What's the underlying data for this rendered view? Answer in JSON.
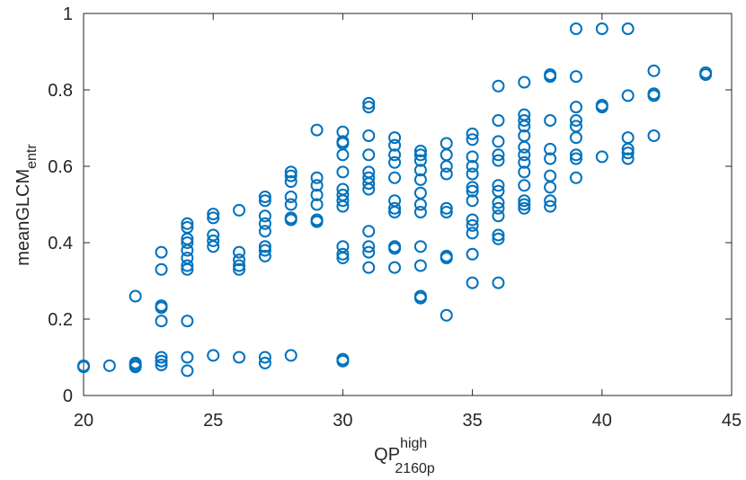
{
  "chart_data": {
    "type": "scatter",
    "xlabel": {
      "text": "QP",
      "sup": "high",
      "sub": "2160p"
    },
    "ylabel": {
      "text": "meanGLCM",
      "sub": "entr"
    },
    "color": "#0072bd",
    "xlim": [
      20,
      45
    ],
    "xticks": [
      20,
      25,
      30,
      35,
      40,
      45
    ],
    "ylim": [
      0,
      1
    ],
    "yticks": [
      0,
      0.2,
      0.4,
      0.6,
      0.8,
      1
    ],
    "x": [
      20,
      20,
      21,
      22,
      22,
      22,
      22,
      23,
      23,
      23,
      23,
      23,
      23,
      23,
      23,
      24,
      24,
      24,
      24,
      24,
      24,
      24,
      24,
      24,
      24,
      24,
      25,
      25,
      25,
      25,
      25,
      25,
      26,
      26,
      26,
      26,
      26,
      26,
      27,
      27,
      27,
      27,
      27,
      27,
      27,
      27,
      27,
      27,
      28,
      28,
      28,
      28,
      28,
      28,
      28,
      28,
      29,
      29,
      29,
      29,
      29,
      29,
      29,
      30,
      30,
      30,
      30,
      30,
      30,
      30,
      30,
      30,
      30,
      30,
      30,
      30,
      30,
      31,
      31,
      31,
      31,
      31,
      31,
      31,
      31,
      31,
      31,
      31,
      31,
      32,
      32,
      32,
      32,
      32,
      32,
      32,
      32,
      32,
      32,
      32,
      33,
      33,
      33,
      33,
      33,
      33,
      33,
      33,
      33,
      33,
      33,
      33,
      34,
      34,
      34,
      34,
      34,
      34,
      34,
      34,
      34,
      35,
      35,
      35,
      35,
      35,
      35,
      35,
      35,
      35,
      35,
      35,
      35,
      35,
      36,
      36,
      36,
      36,
      36,
      36,
      36,
      36,
      36,
      36,
      36,
      36,
      36,
      37,
      37,
      37,
      37,
      37,
      37,
      37,
      37,
      37,
      37,
      37,
      37,
      37,
      38,
      38,
      38,
      38,
      38,
      38,
      38,
      38,
      38,
      39,
      39,
      39,
      39,
      39,
      39,
      39,
      39,
      39,
      40,
      40,
      40,
      40,
      41,
      41,
      41,
      41,
      41,
      41,
      42,
      42,
      42,
      42,
      44,
      44
    ],
    "y": [
      0.078,
      0.075,
      0.078,
      0.26,
      0.085,
      0.075,
      0.08,
      0.375,
      0.33,
      0.235,
      0.23,
      0.195,
      0.1,
      0.09,
      0.08,
      0.45,
      0.44,
      0.41,
      0.4,
      0.38,
      0.36,
      0.34,
      0.33,
      0.195,
      0.1,
      0.065,
      0.475,
      0.465,
      0.42,
      0.405,
      0.39,
      0.105,
      0.485,
      0.375,
      0.355,
      0.34,
      0.33,
      0.1,
      0.52,
      0.51,
      0.47,
      0.45,
      0.43,
      0.39,
      0.38,
      0.365,
      0.1,
      0.085,
      0.585,
      0.575,
      0.56,
      0.52,
      0.5,
      0.465,
      0.46,
      0.105,
      0.695,
      0.57,
      0.55,
      0.525,
      0.5,
      0.46,
      0.455,
      0.69,
      0.665,
      0.66,
      0.63,
      0.585,
      0.54,
      0.525,
      0.51,
      0.495,
      0.39,
      0.37,
      0.36,
      0.095,
      0.09,
      0.765,
      0.755,
      0.68,
      0.63,
      0.585,
      0.57,
      0.555,
      0.54,
      0.43,
      0.39,
      0.375,
      0.335,
      0.675,
      0.655,
      0.63,
      0.61,
      0.57,
      0.51,
      0.49,
      0.48,
      0.39,
      0.385,
      0.335,
      0.64,
      0.63,
      0.615,
      0.59,
      0.565,
      0.53,
      0.5,
      0.48,
      0.39,
      0.34,
      0.26,
      0.255,
      0.66,
      0.63,
      0.6,
      0.58,
      0.49,
      0.48,
      0.365,
      0.36,
      0.21,
      0.685,
      0.67,
      0.625,
      0.6,
      0.58,
      0.545,
      0.535,
      0.51,
      0.46,
      0.445,
      0.425,
      0.37,
      0.295,
      0.81,
      0.72,
      0.665,
      0.63,
      0.615,
      0.55,
      0.535,
      0.505,
      0.49,
      0.47,
      0.42,
      0.41,
      0.295,
      0.82,
      0.735,
      0.72,
      0.705,
      0.68,
      0.65,
      0.63,
      0.61,
      0.585,
      0.55,
      0.51,
      0.5,
      0.49,
      0.84,
      0.835,
      0.72,
      0.645,
      0.62,
      0.575,
      0.545,
      0.51,
      0.495,
      0.96,
      0.835,
      0.755,
      0.72,
      0.705,
      0.675,
      0.63,
      0.62,
      0.57,
      0.96,
      0.76,
      0.755,
      0.625,
      0.96,
      0.785,
      0.675,
      0.645,
      0.635,
      0.62,
      0.85,
      0.79,
      0.785,
      0.68,
      0.84,
      0.845
    ]
  }
}
